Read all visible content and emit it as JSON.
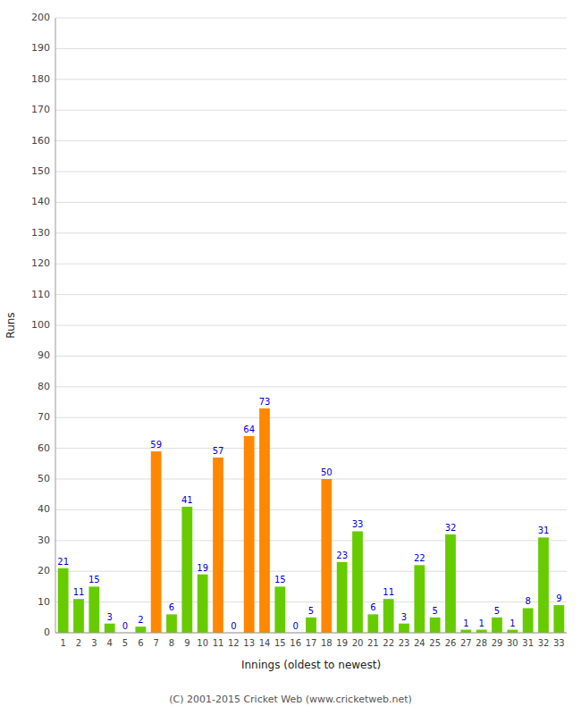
{
  "chart_data": {
    "type": "bar",
    "categories": [
      "1",
      "2",
      "3",
      "4",
      "5",
      "6",
      "7",
      "8",
      "9",
      "10",
      "11",
      "12",
      "13",
      "14",
      "15",
      "16",
      "17",
      "18",
      "19",
      "20",
      "21",
      "22",
      "23",
      "24",
      "25",
      "26",
      "27",
      "28",
      "29",
      "30",
      "31",
      "32",
      "33"
    ],
    "values": [
      21,
      11,
      15,
      3,
      0,
      2,
      59,
      6,
      41,
      19,
      57,
      0,
      64,
      73,
      15,
      0,
      5,
      50,
      23,
      33,
      6,
      11,
      3,
      22,
      5,
      32,
      1,
      1,
      5,
      1,
      8,
      31,
      9
    ],
    "colors": [
      "#66cc00",
      "#66cc00",
      "#66cc00",
      "#66cc00",
      "#66cc00",
      "#66cc00",
      "#ff8800",
      "#66cc00",
      "#66cc00",
      "#66cc00",
      "#ff8800",
      "#66cc00",
      "#ff8800",
      "#ff8800",
      "#66cc00",
      "#66cc00",
      "#66cc00",
      "#ff8800",
      "#66cc00",
      "#66cc00",
      "#66cc00",
      "#66cc00",
      "#66cc00",
      "#66cc00",
      "#66cc00",
      "#66cc00",
      "#66cc00",
      "#66cc00",
      "#66cc00",
      "#66cc00",
      "#66cc00",
      "#66cc00",
      "#66cc00"
    ],
    "xlabel": "Innings (oldest to newest)",
    "ylabel": "Runs",
    "ylim": [
      0,
      200
    ],
    "yticks": [
      0,
      10,
      20,
      30,
      40,
      50,
      60,
      70,
      80,
      90,
      100,
      110,
      120,
      130,
      140,
      150,
      160,
      170,
      180,
      190,
      200
    ],
    "grid": true,
    "data_labels": true,
    "annotations": [
      "(C) 2001-2015 Cricket Web (www.cricketweb.net)"
    ]
  }
}
